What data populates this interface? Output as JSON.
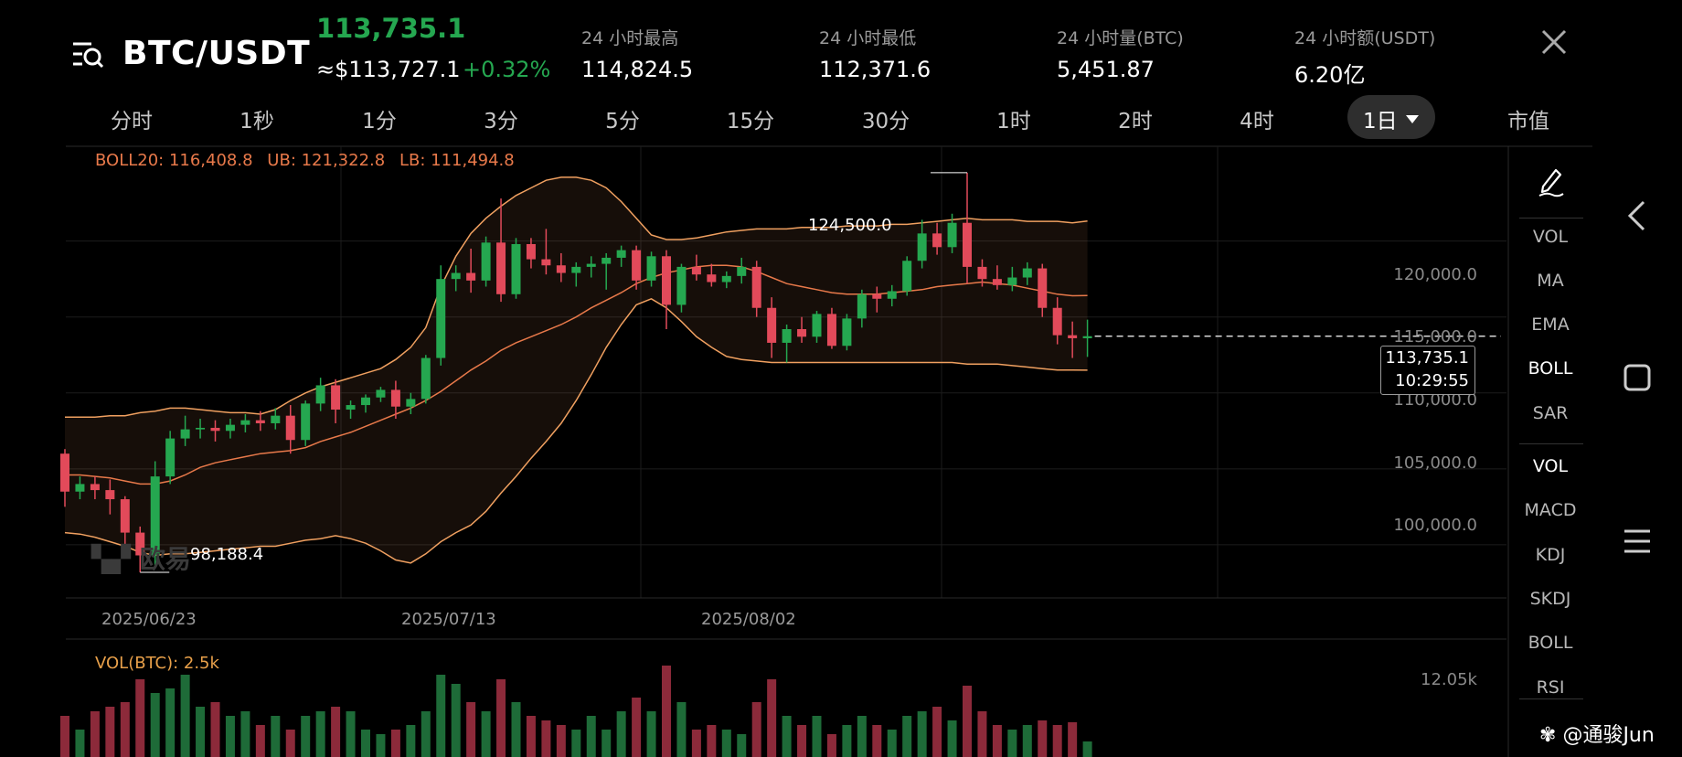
{
  "header": {
    "pair": "BTC/USDT",
    "last_price": "113,735.1",
    "usd_price": "≈$113,727.1",
    "change": "+0.32%",
    "stats": [
      {
        "label": "24 小时最高",
        "value": "114,824.5"
      },
      {
        "label": "24 小时最低",
        "value": "112,371.6"
      },
      {
        "label": "24 小时量(BTC)",
        "value": "5,451.87"
      },
      {
        "label": "24 小时额(USDT)",
        "value": "6.20亿"
      }
    ]
  },
  "timeframes": [
    "分时",
    "1秒",
    "1分",
    "3分",
    "5分",
    "15分",
    "30分",
    "1时",
    "2时",
    "4时",
    "1日",
    "市值"
  ],
  "active_timeframe": "1日",
  "boll_legend": {
    "mid": "BOLL20: 116,408.8",
    "ub": "UB: 121,322.8",
    "lb": "LB: 111,494.8"
  },
  "vol_legend": "VOL(BTC): 2.5k",
  "chart": {
    "y_ticks": [
      "120,000.0",
      "115,000.0",
      "110,000.0",
      "105,000.0",
      "100,000.0"
    ],
    "x_ticks": [
      "2025/06/23",
      "2025/07/13",
      "2025/08/02"
    ],
    "high_label": "124,500.0",
    "low_label": "98,188.4",
    "current_price": "113,735.1",
    "countdown": "10:29:55",
    "vol_tick": "12.05k",
    "watermark": "欧易"
  },
  "chart_data": {
    "type": "candlestick",
    "y_range": [
      96500,
      126000
    ],
    "x_ticks": [
      "2025/06/23",
      "2025/07/13",
      "2025/08/02"
    ],
    "y_ticks": [
      100000,
      105000,
      110000,
      115000,
      120000
    ],
    "candles": [
      [
        106000,
        106300,
        102500,
        103500
      ],
      [
        103500,
        104500,
        103000,
        104000
      ],
      [
        104000,
        104500,
        103000,
        103600
      ],
      [
        103600,
        104300,
        102000,
        103000
      ],
      [
        103000,
        103200,
        99800,
        100800
      ],
      [
        100800,
        101200,
        98188.4,
        99300
      ],
      [
        99300,
        105500,
        98500,
        104500
      ],
      [
        104500,
        107500,
        104000,
        107000
      ],
      [
        107000,
        108500,
        106500,
        107600
      ],
      [
        107600,
        108300,
        107000,
        107700
      ],
      [
        107700,
        108200,
        106800,
        107500
      ],
      [
        107500,
        108300,
        107000,
        107900
      ],
      [
        107900,
        108600,
        107400,
        108200
      ],
      [
        108200,
        108800,
        107500,
        108000
      ],
      [
        108000,
        109000,
        107600,
        108500
      ],
      [
        108500,
        109200,
        106000,
        106900
      ],
      [
        106900,
        109500,
        106500,
        109300
      ],
      [
        109300,
        111000,
        108800,
        110500
      ],
      [
        110500,
        110900,
        108000,
        108900
      ],
      [
        108900,
        109500,
        108300,
        109200
      ],
      [
        109200,
        109900,
        108700,
        109700
      ],
      [
        109700,
        110400,
        109400,
        110200
      ],
      [
        110200,
        110800,
        108300,
        109100
      ],
      [
        109100,
        110000,
        108600,
        109600
      ],
      [
        109600,
        112500,
        109300,
        112300
      ],
      [
        112300,
        118400,
        111800,
        117500
      ],
      [
        117500,
        118400,
        116700,
        117900
      ],
      [
        117900,
        119500,
        116600,
        117400
      ],
      [
        117400,
        120300,
        117000,
        119900
      ],
      [
        119900,
        122800,
        116000,
        116500
      ],
      [
        116500,
        120200,
        116200,
        119800
      ],
      [
        119800,
        120200,
        118200,
        118800
      ],
      [
        118800,
        120800,
        117800,
        118400
      ],
      [
        118400,
        119200,
        117300,
        117900
      ],
      [
        117900,
        118600,
        117000,
        118300
      ],
      [
        118300,
        119000,
        117600,
        118500
      ],
      [
        118500,
        119200,
        116800,
        118900
      ],
      [
        118900,
        119700,
        118300,
        119400
      ],
      [
        119400,
        119700,
        116800,
        117400
      ],
      [
        117400,
        119300,
        117000,
        119000
      ],
      [
        119000,
        119400,
        114200,
        115800
      ],
      [
        115800,
        118500,
        115300,
        118300
      ],
      [
        118300,
        119100,
        117400,
        117800
      ],
      [
        117800,
        118500,
        117000,
        117300
      ],
      [
        117300,
        118000,
        116900,
        117700
      ],
      [
        117700,
        118900,
        117200,
        118300
      ],
      [
        118300,
        118700,
        115000,
        115600
      ],
      [
        115600,
        116300,
        112300,
        113300
      ],
      [
        113300,
        114500,
        112000,
        114200
      ],
      [
        114200,
        115000,
        113300,
        113700
      ],
      [
        113700,
        115400,
        113300,
        115200
      ],
      [
        115200,
        115600,
        112900,
        113100
      ],
      [
        113100,
        115200,
        112800,
        114900
      ],
      [
        114900,
        116800,
        114300,
        116500
      ],
      [
        116500,
        117000,
        115300,
        116200
      ],
      [
        116200,
        117100,
        115700,
        116700
      ],
      [
        116700,
        119000,
        116400,
        118700
      ],
      [
        118700,
        121400,
        118200,
        120500
      ],
      [
        120500,
        121200,
        119100,
        119600
      ],
      [
        119600,
        121800,
        119200,
        121200
      ],
      [
        121200,
        124500,
        117200,
        118300
      ],
      [
        118300,
        118800,
        117000,
        117500
      ],
      [
        117500,
        118400,
        116800,
        117100
      ],
      [
        117100,
        118300,
        116700,
        117600
      ],
      [
        117600,
        118600,
        117100,
        118200
      ],
      [
        118200,
        118500,
        115000,
        115600
      ],
      [
        115600,
        116300,
        113200,
        113800
      ],
      [
        113800,
        114700,
        112300,
        113600
      ],
      [
        113600,
        114824.5,
        112371.6,
        113735.1
      ]
    ],
    "boll_mid": [
      104600,
      104600,
      104500,
      104400,
      104200,
      104000,
      104000,
      104200,
      104600,
      105100,
      105400,
      105600,
      105800,
      106000,
      106100,
      106200,
      106400,
      106800,
      107100,
      107400,
      107800,
      108200,
      108600,
      109000,
      109500,
      110100,
      110800,
      111500,
      112100,
      112800,
      113300,
      113700,
      114100,
      114500,
      115000,
      115600,
      116100,
      116600,
      117200,
      117600,
      117900,
      118100,
      118300,
      118400,
      118400,
      118300,
      118000,
      117600,
      117200,
      117000,
      116800,
      116600,
      116500,
      116500,
      116500,
      116600,
      116700,
      116800,
      117000,
      117100,
      117200,
      117300,
      117200,
      117100,
      116900,
      116700,
      116500,
      116400,
      116408.8
    ],
    "boll_upper": [
      108400,
      108400,
      108400,
      108500,
      108500,
      108700,
      108800,
      109000,
      109000,
      108900,
      108800,
      108700,
      108700,
      108600,
      108900,
      109500,
      110000,
      110400,
      110700,
      111000,
      111300,
      111600,
      112200,
      113000,
      114300,
      117000,
      119000,
      120500,
      121500,
      122300,
      123000,
      123500,
      124000,
      124200,
      124200,
      124000,
      123500,
      122600,
      121500,
      120400,
      120100,
      120100,
      120200,
      120400,
      120600,
      120700,
      120800,
      120800,
      120800,
      120900,
      120900,
      120900,
      121000,
      121000,
      121000,
      121100,
      121100,
      121200,
      121300,
      121400,
      121500,
      121400,
      121400,
      121400,
      121300,
      121300,
      121300,
      121200,
      121322.8
    ],
    "boll_lower": [
      100800,
      100700,
      100500,
      100200,
      99900,
      99500,
      99300,
      99400,
      99400,
      99500,
      99600,
      99700,
      99800,
      99900,
      99900,
      100100,
      100300,
      100400,
      100600,
      100400,
      100100,
      99600,
      99000,
      98800,
      99400,
      100200,
      100800,
      101300,
      102200,
      103400,
      104500,
      105700,
      106800,
      108000,
      109500,
      111200,
      113000,
      114500,
      115800,
      116200,
      115600,
      114700,
      113700,
      113000,
      112400,
      112200,
      112100,
      112000,
      112000,
      112000,
      112000,
      112000,
      112000,
      112000,
      112000,
      112000,
      112000,
      112000,
      112000,
      112000,
      111900,
      111900,
      111900,
      111800,
      111700,
      111600,
      111500,
      111500,
      111494.8
    ],
    "volume_ratio": [
      0.45,
      0.3,
      0.5,
      0.55,
      0.6,
      0.85,
      0.7,
      0.75,
      0.9,
      0.55,
      0.6,
      0.45,
      0.5,
      0.35,
      0.45,
      0.3,
      0.45,
      0.5,
      0.55,
      0.5,
      0.3,
      0.25,
      0.3,
      0.35,
      0.5,
      0.9,
      0.8,
      0.6,
      0.5,
      0.85,
      0.6,
      0.45,
      0.4,
      0.35,
      0.3,
      0.45,
      0.3,
      0.5,
      0.65,
      0.5,
      1.0,
      0.6,
      0.3,
      0.35,
      0.3,
      0.25,
      0.6,
      0.85,
      0.45,
      0.35,
      0.45,
      0.25,
      0.35,
      0.45,
      0.35,
      0.3,
      0.45,
      0.5,
      0.55,
      0.4,
      0.78,
      0.5,
      0.35,
      0.3,
      0.35,
      0.4,
      0.35,
      0.38,
      0.17
    ]
  },
  "indicators_main": [
    "VOL",
    "MA",
    "EMA",
    "BOLL",
    "SAR"
  ],
  "indicators_sub": [
    "VOL",
    "MACD",
    "KDJ",
    "SKDJ",
    "BOLL",
    "RSI"
  ],
  "active_main": "BOLL",
  "active_sub": "VOL",
  "credit": "@通骏Jun",
  "colors": {
    "up": "#25a750",
    "down": "#e24a5a",
    "boll_mid": "#e8794a",
    "boll_band": "#f0a060"
  }
}
